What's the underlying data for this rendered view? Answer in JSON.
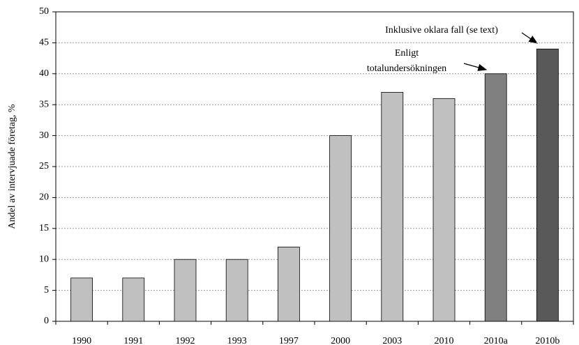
{
  "chart_data": {
    "type": "bar",
    "y_label": "Andel av intervjuade företag, %",
    "categories": [
      "1990",
      "1991",
      "1992",
      "1993",
      "1997",
      "2000",
      "2003",
      "2010",
      "2010a",
      "2010b"
    ],
    "values": [
      7,
      7,
      10,
      10,
      12,
      30,
      37,
      36,
      40,
      44
    ],
    "colors": [
      "#c0c0c0",
      "#c0c0c0",
      "#c0c0c0",
      "#c0c0c0",
      "#c0c0c0",
      "#c0c0c0",
      "#c0c0c0",
      "#c0c0c0",
      "#808080",
      "#595959"
    ],
    "ylim": [
      0,
      50
    ],
    "yticks": [
      0,
      5,
      10,
      15,
      20,
      25,
      30,
      35,
      40,
      45,
      50
    ],
    "grid": true,
    "annotations": [
      {
        "lines": [
          "Enligt",
          "totalundersökningen"
        ]
      },
      {
        "lines": [
          "Inklusive oklara fall (se text)"
        ]
      }
    ]
  }
}
